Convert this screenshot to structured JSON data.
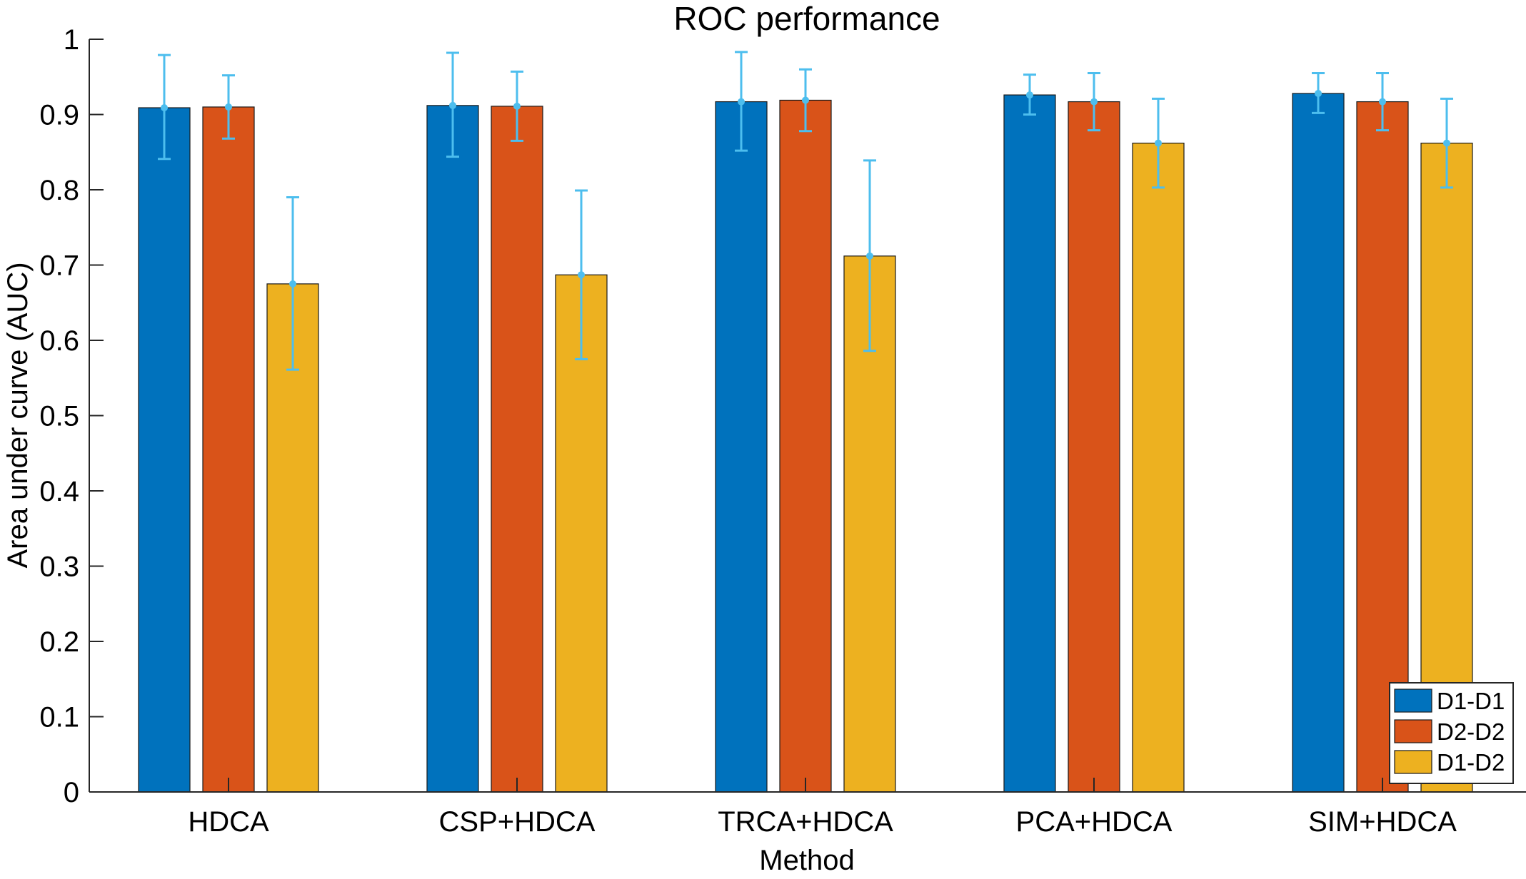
{
  "chart_data": {
    "type": "bar",
    "title": "ROC performance",
    "xlabel": "Method",
    "ylabel": "Area under curve (AUC)",
    "ylim": [
      0,
      1
    ],
    "yticks": [
      0,
      0.1,
      0.2,
      0.3,
      0.4,
      0.5,
      0.6,
      0.7,
      0.8,
      0.9,
      1
    ],
    "ytick_labels": [
      "0",
      "0.1",
      "0.2",
      "0.3",
      "0.4",
      "0.5",
      "0.6",
      "0.7",
      "0.8",
      "0.9",
      "1"
    ],
    "categories": [
      "HDCA",
      "CSP+HDCA",
      "TRCA+HDCA",
      "PCA+HDCA",
      "SIM+HDCA"
    ],
    "series": [
      {
        "name": "D1-D1",
        "color": "#0072BD",
        "values": [
          0.909,
          0.912,
          0.917,
          0.926,
          0.928
        ],
        "err_low": [
          0.841,
          0.844,
          0.852,
          0.9,
          0.902
        ],
        "err_high": [
          0.979,
          0.982,
          0.983,
          0.953,
          0.955
        ]
      },
      {
        "name": "D2-D2",
        "color": "#D95319",
        "values": [
          0.91,
          0.911,
          0.919,
          0.917,
          0.917
        ],
        "err_low": [
          0.868,
          0.865,
          0.878,
          0.879,
          0.879
        ],
        "err_high": [
          0.952,
          0.957,
          0.96,
          0.955,
          0.955
        ]
      },
      {
        "name": "D1-D2",
        "color": "#EDB120",
        "values": [
          0.675,
          0.687,
          0.712,
          0.862,
          0.862
        ],
        "err_low": [
          0.561,
          0.575,
          0.586,
          0.803,
          0.803
        ],
        "err_high": [
          0.79,
          0.799,
          0.839,
          0.921,
          0.921
        ]
      }
    ],
    "error_bar_color": "#4DBEEE",
    "grid": false,
    "legend_position": "bottom-right"
  }
}
